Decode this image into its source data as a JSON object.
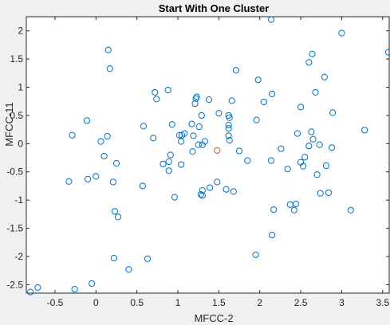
{
  "figure": {
    "background": "#f0f0f0"
  },
  "chart_data": {
    "type": "scatter",
    "title": "Start With One Cluster",
    "xlabel": "MFCC-2",
    "ylabel": "MFCC-11",
    "xlim": [
      -0.85,
      3.58
    ],
    "ylim": [
      -2.65,
      2.25
    ],
    "xticks": [
      -0.5,
      0,
      0.5,
      1,
      1.5,
      2,
      2.5,
      3,
      3.5
    ],
    "xtick_labels": [
      "-0.5",
      "0",
      "0.5",
      "1",
      "1.5",
      "2",
      "2.5",
      "3",
      "3.5"
    ],
    "yticks": [
      -2.5,
      -2,
      -1.5,
      -1,
      -0.5,
      0,
      0.5,
      1,
      1.5,
      2
    ],
    "ytick_labels": [
      "-2.5",
      "-2",
      "-1.5",
      "-1",
      "-0.5",
      "0",
      "0.5",
      "1",
      "1.5",
      "2"
    ],
    "grid": false,
    "box": true,
    "series": [
      {
        "color": "#0072bd",
        "marker": "circle-open",
        "points": [
          [
            -0.8,
            -2.63
          ],
          [
            -0.71,
            -2.55
          ],
          [
            -0.26,
            -2.58
          ],
          [
            -0.05,
            -2.48
          ],
          [
            -0.29,
            0.15
          ],
          [
            -0.11,
            0.41
          ],
          [
            0.06,
            0.04
          ],
          [
            0.14,
            0.13
          ],
          [
            0.15,
            1.66
          ],
          [
            0.17,
            1.33
          ],
          [
            0.1,
            -0.22
          ],
          [
            0.25,
            -0.35
          ],
          [
            0.0,
            -0.58
          ],
          [
            -0.1,
            -0.63
          ],
          [
            -0.33,
            -0.67
          ],
          [
            0.21,
            -0.68
          ],
          [
            0.23,
            -1.2
          ],
          [
            0.27,
            -1.3
          ],
          [
            0.22,
            -2.03
          ],
          [
            0.4,
            -2.23
          ],
          [
            0.63,
            -2.04
          ],
          [
            0.58,
            0.31
          ],
          [
            0.57,
            -0.75
          ],
          [
            0.7,
            0.1
          ],
          [
            0.72,
            0.91
          ],
          [
            0.74,
            0.79
          ],
          [
            0.88,
            0.95
          ],
          [
            0.82,
            -0.36
          ],
          [
            0.89,
            -0.32
          ],
          [
            0.91,
            -0.2
          ],
          [
            0.89,
            -0.48
          ],
          [
            0.93,
            0.34
          ],
          [
            0.96,
            -0.95
          ],
          [
            1.02,
            0.15
          ],
          [
            1.05,
            0.15
          ],
          [
            1.04,
            -0.37
          ],
          [
            1.04,
            0.04
          ],
          [
            1.08,
            0.18
          ],
          [
            1.19,
            0.14
          ],
          [
            1.17,
            0.35
          ],
          [
            1.21,
            0.71
          ],
          [
            1.23,
            0.83
          ],
          [
            1.22,
            0.8
          ],
          [
            1.29,
            0.5
          ],
          [
            1.26,
            0.3
          ],
          [
            1.25,
            -0.02
          ],
          [
            1.3,
            -0.02
          ],
          [
            1.33,
            0.04
          ],
          [
            1.18,
            -0.14
          ],
          [
            1.28,
            -0.9
          ],
          [
            1.3,
            -0.92
          ],
          [
            1.3,
            -0.83
          ],
          [
            1.39,
            -0.78
          ],
          [
            1.48,
            -0.68
          ],
          [
            1.38,
            0.78
          ],
          [
            1.5,
            0.54
          ],
          [
            1.59,
            -0.81
          ],
          [
            1.62,
            0.5
          ],
          [
            1.62,
            0.33
          ],
          [
            1.62,
            0.27
          ],
          [
            1.63,
            0.46
          ],
          [
            1.62,
            0.14
          ],
          [
            1.63,
            0.06
          ],
          [
            1.66,
            0.76
          ],
          [
            1.68,
            -0.85
          ],
          [
            1.71,
            1.3
          ],
          [
            1.75,
            -0.13
          ],
          [
            1.85,
            -0.3
          ],
          [
            1.96,
            0.42
          ],
          [
            1.98,
            1.13
          ],
          [
            1.95,
            -1.97
          ],
          [
            2.05,
            0.74
          ],
          [
            2.15,
            0.88
          ],
          [
            2.14,
            -0.3
          ],
          [
            2.17,
            -1.17
          ],
          [
            2.15,
            -1.62
          ],
          [
            2.14,
            2.2
          ],
          [
            2.26,
            -0.09
          ],
          [
            2.34,
            -0.45
          ],
          [
            2.37,
            -1.08
          ],
          [
            2.42,
            -1.18
          ],
          [
            2.44,
            -1.07
          ],
          [
            2.46,
            0.18
          ],
          [
            2.5,
            -0.33
          ],
          [
            2.5,
            0.65
          ],
          [
            2.53,
            -0.4
          ],
          [
            2.55,
            -0.24
          ],
          [
            2.6,
            1.44
          ],
          [
            2.6,
            -0.04
          ],
          [
            2.64,
            1.59
          ],
          [
            2.63,
            0.21
          ],
          [
            2.65,
            0.08
          ],
          [
            2.68,
            0.91
          ],
          [
            2.7,
            -0.55
          ],
          [
            2.73,
            -0.02
          ],
          [
            2.74,
            -0.88
          ],
          [
            2.79,
            1.18
          ],
          [
            2.81,
            -0.39
          ],
          [
            2.84,
            -0.87
          ],
          [
            2.89,
            0.55
          ],
          [
            2.88,
            -0.07
          ],
          [
            3.0,
            1.96
          ],
          [
            3.11,
            -1.18
          ],
          [
            3.28,
            0.24
          ],
          [
            3.57,
            1.62
          ]
        ]
      },
      {
        "color": "#d95319",
        "marker": "circle-open",
        "points": [
          [
            1.48,
            -0.12
          ]
        ]
      }
    ]
  }
}
